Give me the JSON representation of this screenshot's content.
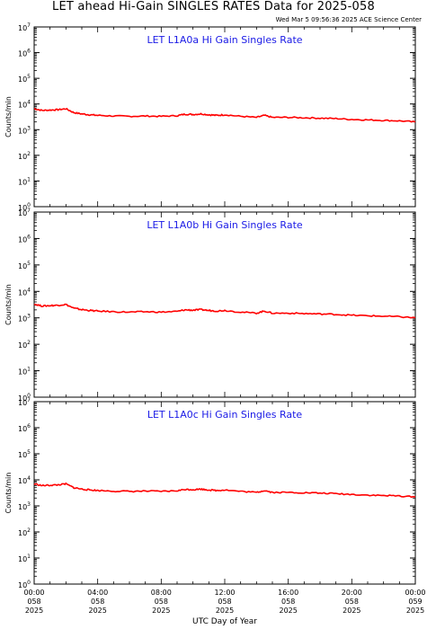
{
  "header": {
    "title": "LET ahead Hi-Gain SINGLES RATES Data for 2025-058",
    "timestamp": "Wed Mar  5 09:56:36 2025 ACE Science Center"
  },
  "colors": {
    "trace": "#ff0000",
    "panel_title": "#1a1ae6",
    "axis": "#000000"
  },
  "chart_data": [
    {
      "type": "line",
      "title": "LET L1A0a Hi Gain Singles Rate",
      "ylabel": "Counts/min",
      "xlabel": "UTC Day of Year",
      "ylog": true,
      "ylim": [
        1,
        10000000
      ],
      "xlim": [
        0,
        24
      ],
      "y_ticks": [
        "10^0",
        "10^1",
        "10^2",
        "10^3",
        "10^4",
        "10^5",
        "10^6",
        "10^7"
      ],
      "series": [
        {
          "x": [
            0,
            0.5,
            1,
            1.5,
            2,
            2.5,
            3,
            3.5,
            4,
            5,
            6,
            7,
            8,
            9,
            9.5,
            10,
            10.5,
            11,
            11.5,
            12,
            13,
            14,
            14.5,
            15,
            16,
            17,
            18,
            19,
            20,
            21,
            22,
            23,
            24
          ],
          "y": [
            6500,
            5600,
            5800,
            6000,
            6500,
            4600,
            4100,
            3800,
            3600,
            3400,
            3300,
            3400,
            3300,
            3500,
            4000,
            3900,
            4100,
            3800,
            3600,
            3800,
            3300,
            3000,
            3600,
            3000,
            3000,
            2900,
            2800,
            2700,
            2500,
            2400,
            2300,
            2200,
            2000
          ]
        }
      ]
    },
    {
      "type": "line",
      "title": "LET L1A0b Hi Gain Singles Rate",
      "ylabel": "Counts/min",
      "xlabel": "UTC Day of Year",
      "ylog": true,
      "ylim": [
        1,
        10000000
      ],
      "xlim": [
        0,
        24
      ],
      "y_ticks": [
        "10^0",
        "10^1",
        "10^2",
        "10^3",
        "10^4",
        "10^5",
        "10^6",
        "10^7"
      ],
      "series": [
        {
          "x": [
            0,
            0.5,
            1,
            1.5,
            2,
            2.5,
            3,
            3.5,
            4,
            5,
            6,
            7,
            8,
            9,
            9.5,
            10,
            10.5,
            11,
            11.5,
            12,
            13,
            14,
            14.5,
            15,
            16,
            17,
            18,
            19,
            20,
            21,
            22,
            23,
            24
          ],
          "y": [
            3300,
            2800,
            2900,
            3000,
            3200,
            2300,
            2050,
            1900,
            1800,
            1700,
            1650,
            1700,
            1650,
            1750,
            2000,
            1950,
            2050,
            1900,
            1800,
            1900,
            1650,
            1500,
            1800,
            1500,
            1500,
            1450,
            1400,
            1350,
            1250,
            1200,
            1150,
            1100,
            1000
          ]
        }
      ]
    },
    {
      "type": "line",
      "title": "LET L1A0c Hi Gain Singles Rate",
      "ylabel": "Counts/min",
      "xlabel": "UTC Day of Year",
      "ylog": true,
      "ylim": [
        1,
        10000000
      ],
      "xlim": [
        0,
        24
      ],
      "y_ticks": [
        "10^0",
        "10^1",
        "10^2",
        "10^3",
        "10^4",
        "10^5",
        "10^6",
        "10^7"
      ],
      "series": [
        {
          "x": [
            0,
            0.5,
            1,
            1.5,
            2,
            2.5,
            3,
            3.5,
            4,
            5,
            6,
            7,
            8,
            9,
            9.5,
            10,
            10.5,
            11,
            11.5,
            12,
            13,
            14,
            14.5,
            15,
            16,
            17,
            18,
            19,
            20,
            21,
            22,
            23,
            24
          ],
          "y": [
            7000,
            6000,
            6200,
            6400,
            7000,
            5000,
            4400,
            4100,
            3900,
            3700,
            3600,
            3700,
            3600,
            3800,
            4300,
            4200,
            4400,
            4100,
            3900,
            4100,
            3600,
            3300,
            3900,
            3300,
            3300,
            3200,
            3100,
            2950,
            2750,
            2600,
            2500,
            2400,
            2200
          ]
        }
      ]
    }
  ],
  "x_ticks": [
    {
      "time": "00:00",
      "doy": "058",
      "year": "2025"
    },
    {
      "time": "04:00",
      "doy": "058",
      "year": "2025"
    },
    {
      "time": "08:00",
      "doy": "058",
      "year": "2025"
    },
    {
      "time": "12:00",
      "doy": "058",
      "year": "2025"
    },
    {
      "time": "16:00",
      "doy": "058",
      "year": "2025"
    },
    {
      "time": "20:00",
      "doy": "058",
      "year": "2025"
    },
    {
      "time": "00:00",
      "doy": "059",
      "year": "2025"
    }
  ]
}
